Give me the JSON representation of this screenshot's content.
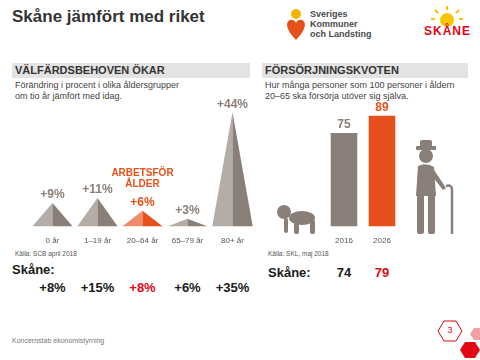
{
  "title": "Skåne jämfört med riket",
  "logos": [
    [
      "Sveriges",
      "Kommuner",
      "och Landsting"
    ],
    [
      "SKÅNE"
    ]
  ],
  "chart_data": [
    {
      "type": "bar",
      "marker": "triangle",
      "title": "VÄLFÄRDSBEHOVEN ÖKAR",
      "subtitle": [
        "Förändring i procent i olika åldersgrupper",
        "om tio år jämfört med idag."
      ],
      "categories": [
        "0 år",
        "1–19 år",
        "20–64 år",
        "65–79 år",
        "80+ år"
      ],
      "values": [
        9,
        11,
        6,
        3,
        44
      ],
      "value_labels": [
        "+9%",
        "+11%",
        "+6%",
        "+3%",
        "+44%"
      ],
      "colors": [
        "#8a7f78",
        "#8a7f78",
        "#e5501b",
        "#8a7f78",
        "#8a7f78"
      ],
      "data_labels": true,
      "annotation": {
        "text": [
          "ARBETSFÖR",
          "ÅLDER"
        ],
        "category": "20–64 år"
      },
      "ylim": [
        0,
        48
      ],
      "yticks": [
        0,
        48
      ],
      "grid": false,
      "tick_labels": "x",
      "source": "Källa: SCB april 2018",
      "skane": {
        "label": "Skåne:",
        "values": [
          8,
          15,
          8,
          6,
          35
        ],
        "value_labels": [
          "+8%",
          "+15%",
          "+8%",
          "+6%",
          "+35%"
        ],
        "colors": [
          "#1a1a1a",
          "#1a1a1a",
          "#e30613",
          "#1a1a1a",
          "#1a1a1a"
        ]
      }
    },
    {
      "type": "bar",
      "title": "FÖRSÖRJNINGSKVOTEN",
      "subtitle": [
        "Hur många personer som 100 personer i åldern",
        "20–65 ska försörja utöver sig själva."
      ],
      "categories": [
        "2016",
        "2026"
      ],
      "values": [
        75,
        89
      ],
      "colors": [
        "#8a7f78",
        "#e5501b"
      ],
      "data_labels": true,
      "ylim": [
        0,
        100
      ],
      "yticks": [
        0,
        100
      ],
      "grid": false,
      "tick_labels": "x",
      "source": "Källa: SKL, maj 2018",
      "skane": {
        "label": "Skåne:",
        "values": [
          74,
          79
        ],
        "colors": [
          "#1a1a1a",
          "#e30613"
        ]
      }
    }
  ],
  "footer": "Koncernstab ekonomistyrning",
  "page_number": 3
}
